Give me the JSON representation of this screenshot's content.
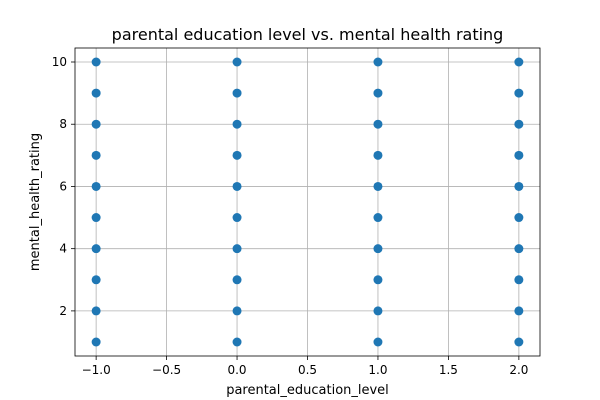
{
  "chart_data": {
    "type": "scatter",
    "title": "parental education level vs. mental health rating",
    "xlabel": "parental_education_level",
    "ylabel": "mental_health_rating",
    "xlim": [
      -1.15,
      2.15
    ],
    "ylim": [
      0.55,
      10.45
    ],
    "xticks": [
      -1.0,
      -0.5,
      0.0,
      0.5,
      1.0,
      1.5,
      2.0
    ],
    "xtick_labels": [
      "−1.0",
      "−0.5",
      "0.0",
      "0.5",
      "1.0",
      "1.5",
      "2.0"
    ],
    "yticks": [
      2,
      4,
      6,
      8,
      10
    ],
    "ytick_labels": [
      "2",
      "4",
      "6",
      "8",
      "10"
    ],
    "grid": true,
    "marker_color": "#1f77b4",
    "x": [
      -1,
      -1,
      -1,
      -1,
      -1,
      -1,
      -1,
      -1,
      -1,
      -1,
      0,
      0,
      0,
      0,
      0,
      0,
      0,
      0,
      0,
      0,
      1,
      1,
      1,
      1,
      1,
      1,
      1,
      1,
      1,
      1,
      2,
      2,
      2,
      2,
      2,
      2,
      2,
      2,
      2,
      2
    ],
    "y": [
      1,
      2,
      3,
      4,
      5,
      6,
      7,
      8,
      9,
      10,
      1,
      2,
      3,
      4,
      5,
      6,
      7,
      8,
      9,
      10,
      1,
      2,
      3,
      4,
      5,
      6,
      7,
      8,
      9,
      10,
      1,
      2,
      3,
      4,
      5,
      6,
      7,
      8,
      9,
      10
    ]
  }
}
